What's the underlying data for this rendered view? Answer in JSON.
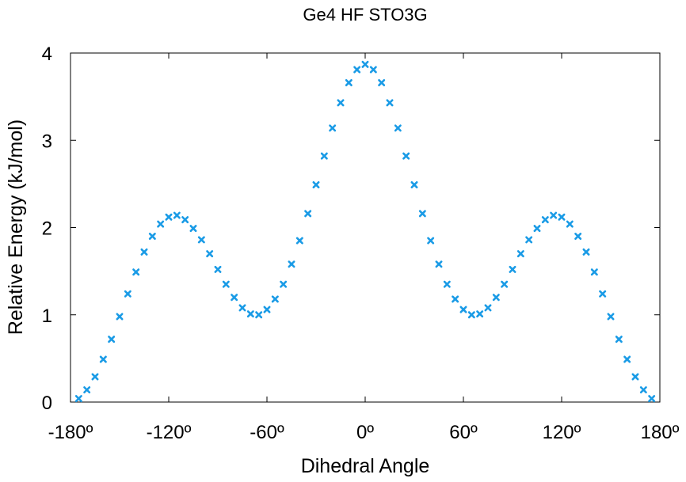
{
  "chart_data": {
    "type": "scatter",
    "title": "Ge4 HF STO3G",
    "xlabel": "Dihedral Angle",
    "ylabel": "Relative Energy (kJ/mol)",
    "xlim": [
      -180,
      180
    ],
    "ylim": [
      0,
      4
    ],
    "x_ticks": [
      -180,
      -120,
      -60,
      0,
      60,
      120,
      180
    ],
    "x_tick_labels": [
      "-180º",
      "-120º",
      "-60º",
      "0º",
      "60º",
      "120º",
      "180º"
    ],
    "y_ticks": [
      0,
      1,
      2,
      3,
      4
    ],
    "y_tick_labels": [
      "0",
      "1",
      "2",
      "3",
      "4"
    ],
    "grid": false,
    "marker": "x",
    "marker_color": "#1a9be6",
    "series": [
      {
        "x": [
          -175,
          -170,
          -165,
          -160,
          -155,
          -150,
          -145,
          -140,
          -135,
          -130,
          -125,
          -120,
          -115,
          -110,
          -105,
          -100,
          -95,
          -90,
          -85,
          -80,
          -75,
          -70,
          -65,
          -60,
          -55,
          -50,
          -45,
          -40,
          -35,
          -30,
          -25,
          -20,
          -15,
          -10,
          -5,
          0,
          5,
          10,
          15,
          20,
          25,
          30,
          35,
          40,
          45,
          50,
          55,
          60,
          65,
          70,
          75,
          80,
          85,
          90,
          95,
          100,
          105,
          110,
          115,
          120,
          125,
          130,
          135,
          140,
          145,
          150,
          155,
          160,
          165,
          170,
          175
        ],
        "y": [
          0.04,
          0.14,
          0.29,
          0.49,
          0.72,
          0.98,
          1.24,
          1.49,
          1.72,
          1.9,
          2.04,
          2.12,
          2.14,
          2.09,
          1.99,
          1.86,
          1.7,
          1.52,
          1.35,
          1.2,
          1.08,
          1.01,
          1.0,
          1.06,
          1.18,
          1.35,
          1.58,
          1.85,
          2.16,
          2.49,
          2.82,
          3.14,
          3.43,
          3.66,
          3.81,
          3.87,
          3.81,
          3.66,
          3.43,
          3.14,
          2.82,
          2.49,
          2.16,
          1.85,
          1.58,
          1.35,
          1.18,
          1.06,
          1.0,
          1.01,
          1.08,
          1.2,
          1.35,
          1.52,
          1.7,
          1.86,
          1.99,
          2.09,
          2.14,
          2.12,
          2.04,
          1.9,
          1.72,
          1.49,
          1.24,
          0.98,
          0.72,
          0.49,
          0.29,
          0.14,
          0.04
        ]
      }
    ]
  }
}
